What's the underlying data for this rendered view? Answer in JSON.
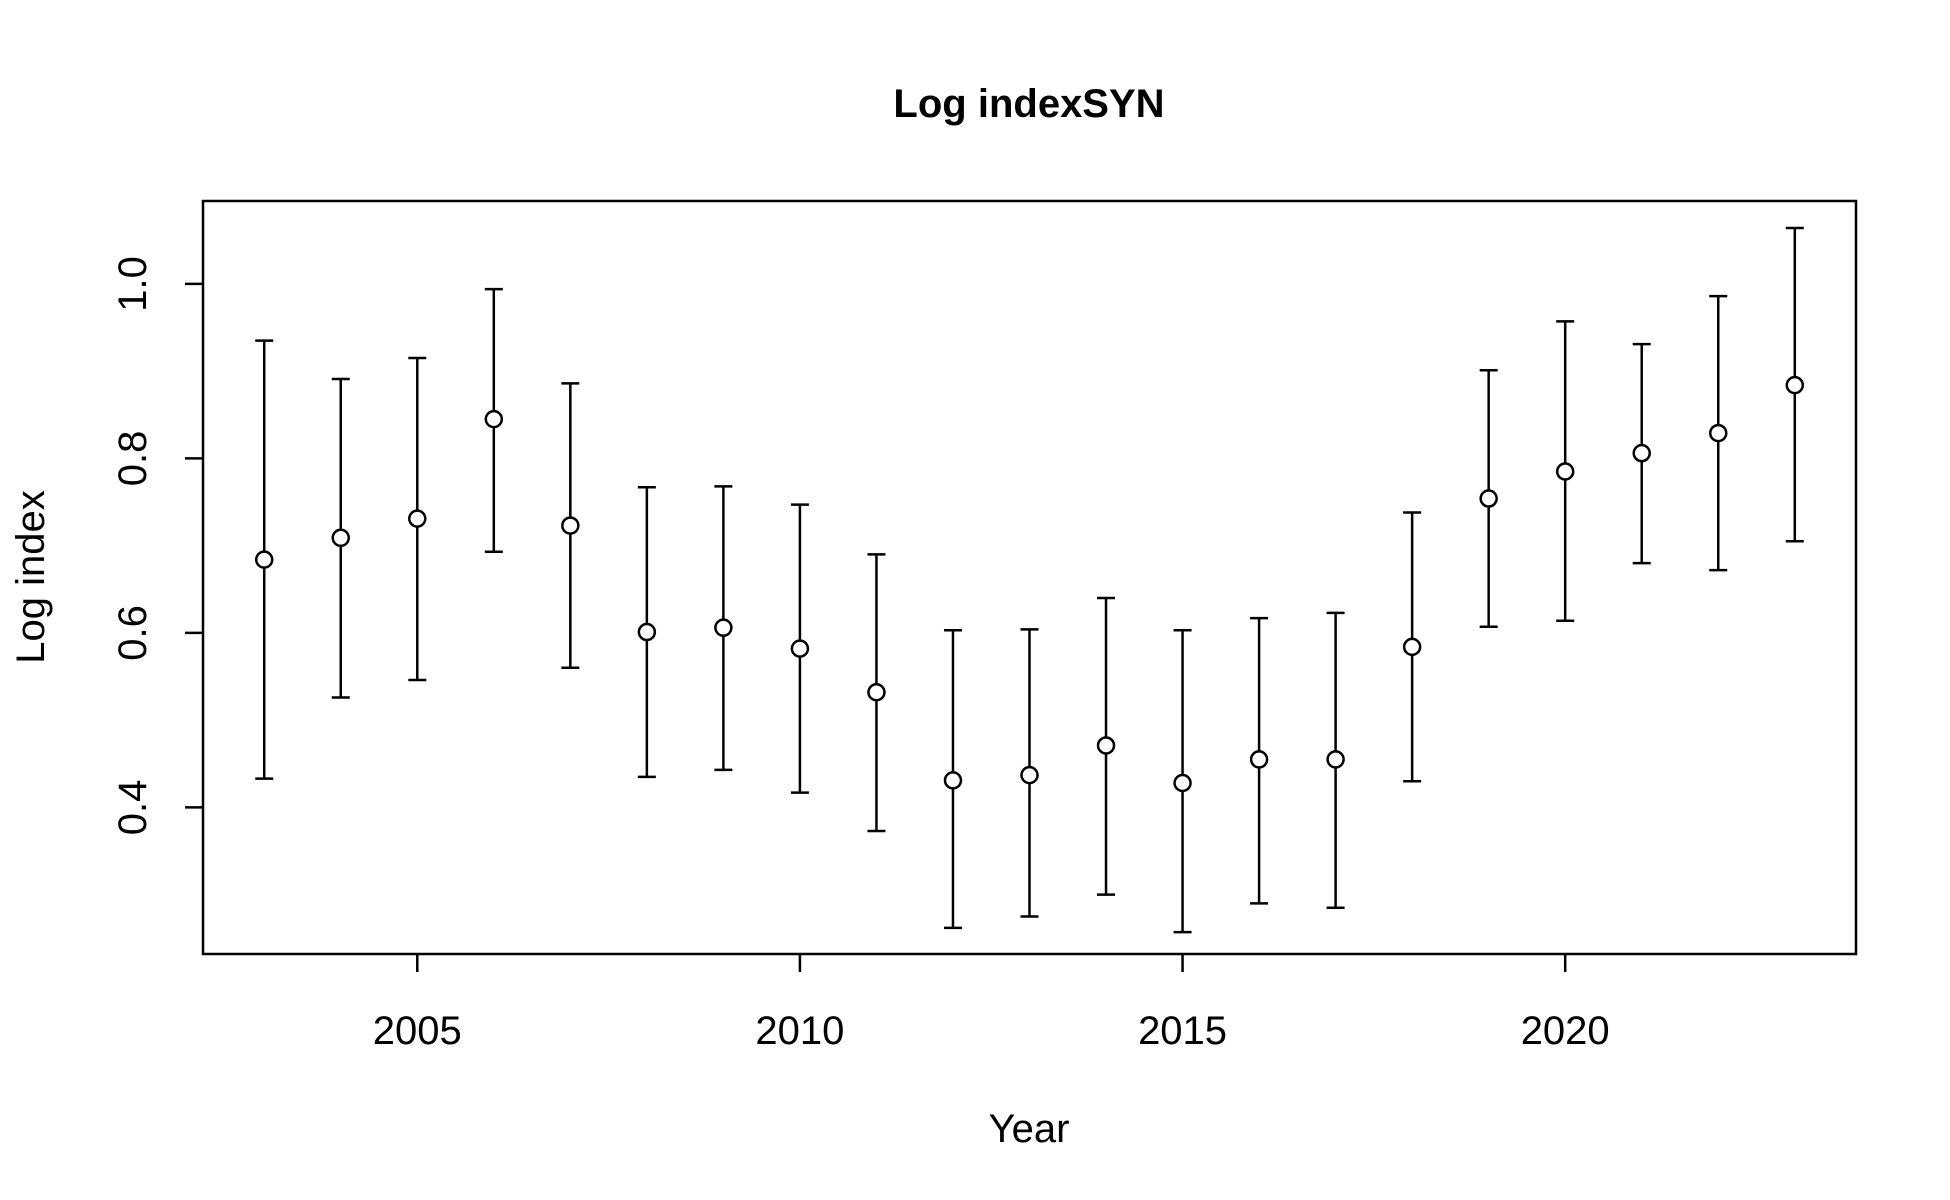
{
  "chart_data": {
    "type": "scatter",
    "title": "Log indexSYN",
    "xlabel": "Year",
    "ylabel": "Log index",
    "xlim": [
      2002.2,
      2023.8
    ],
    "ylim": [
      0.232,
      1.095
    ],
    "x_ticks": [
      "2005",
      "2010",
      "2015",
      "2020"
    ],
    "y_ticks": [
      "0.4",
      "0.6",
      "0.8",
      "1.0"
    ],
    "grid": false,
    "legend": "none",
    "marker": "open-circle",
    "error_bars": true,
    "series": [
      {
        "x": [
          2003,
          2004,
          2005,
          2006,
          2007,
          2008,
          2009,
          2010,
          2011,
          2012,
          2013,
          2014,
          2015,
          2016,
          2017,
          2018,
          2019,
          2020,
          2021,
          2022,
          2023
        ],
        "y": [
          0.684,
          0.709,
          0.731,
          0.845,
          0.723,
          0.601,
          0.606,
          0.582,
          0.532,
          0.431,
          0.437,
          0.471,
          0.428,
          0.455,
          0.455,
          0.584,
          0.754,
          0.785,
          0.806,
          0.829,
          0.884
        ],
        "lower": [
          0.433,
          0.526,
          0.546,
          0.693,
          0.56,
          0.435,
          0.443,
          0.417,
          0.373,
          0.262,
          0.275,
          0.3,
          0.257,
          0.29,
          0.285,
          0.43,
          0.607,
          0.614,
          0.68,
          0.672,
          0.705
        ],
        "upper": [
          0.935,
          0.891,
          0.915,
          0.994,
          0.886,
          0.767,
          0.768,
          0.747,
          0.69,
          0.603,
          0.604,
          0.64,
          0.603,
          0.617,
          0.623,
          0.738,
          0.901,
          0.957,
          0.931,
          0.986,
          1.064
        ]
      }
    ]
  }
}
